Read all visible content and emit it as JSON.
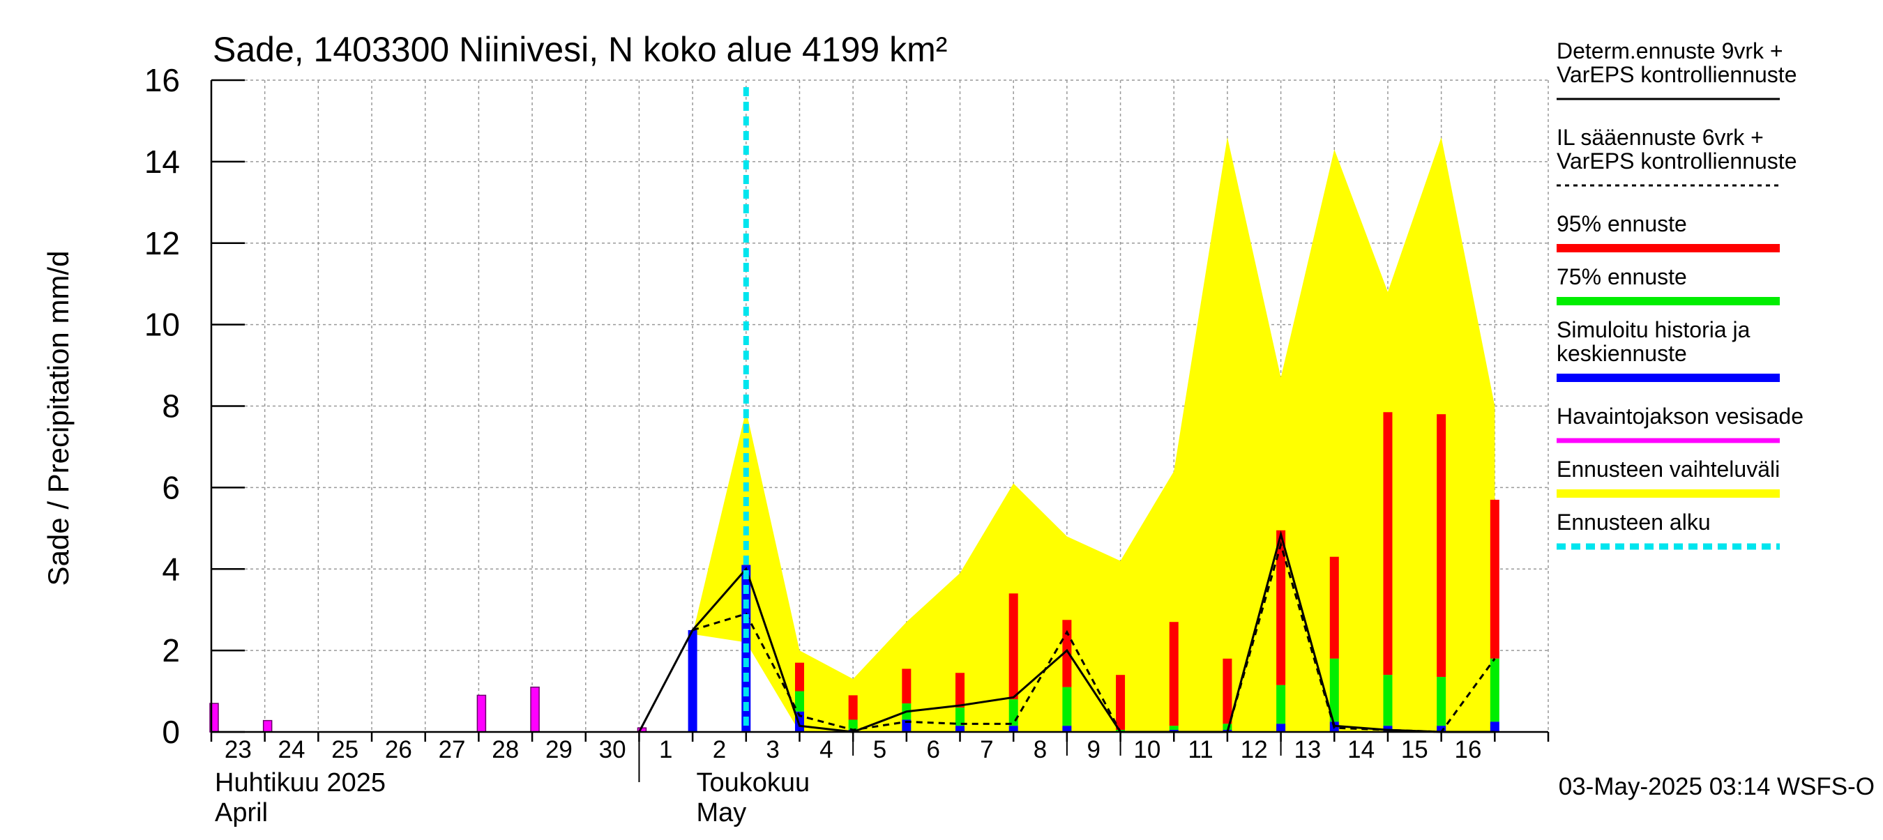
{
  "colors": {
    "background": "#ffffff",
    "grid": "#999999",
    "forecast_range": "#ffff00",
    "p95": "#ff0000",
    "p75": "#00ee00",
    "mean": "#0000ff",
    "observed": "#ff00ff",
    "forecast_start": "#00e5ee",
    "determ": "#000000"
  },
  "chart_data": {
    "type": "bar",
    "title": "Sade, 1403300 Niinivesi, N koko alue 4199 km²",
    "ylabel": "Sade / Precipitation   mm/d",
    "ylim": [
      0,
      16
    ],
    "yticks": [
      0,
      2,
      4,
      6,
      8,
      10,
      12,
      14,
      16
    ],
    "grid": true,
    "legend_position": "right",
    "x_day_labels": [
      "23",
      "24",
      "25",
      "26",
      "27",
      "28",
      "29",
      "30",
      "1",
      "2",
      "3",
      "4",
      "5",
      "6",
      "7",
      "8",
      "9",
      "10",
      "11",
      "12",
      "13",
      "14",
      "15",
      "16"
    ],
    "month_labels": [
      {
        "fi": "Huhtikuu  2025",
        "en": "April",
        "start_day_index": 0
      },
      {
        "fi": "Toukokuu",
        "en": "May",
        "start_day_index": 8
      }
    ],
    "forecast_start_day_index": 10,
    "observed_precipitation": [
      {
        "day_index": 0,
        "value": 0.7
      },
      {
        "day_index": 1,
        "value": 0.28
      },
      {
        "day_index": 5,
        "value": 0.9
      },
      {
        "day_index": 6,
        "value": 1.1
      },
      {
        "day_index": 8,
        "value": 0.1
      }
    ],
    "simulated_history": [
      {
        "day_index": 9,
        "value": 2.5
      },
      {
        "day_index": 10,
        "value": 4.1
      }
    ],
    "forecast_bars": [
      {
        "day_index": 11,
        "mean": 0.5,
        "p75": 1.0,
        "p95": 1.7
      },
      {
        "day_index": 12,
        "mean": 0.05,
        "p75": 0.3,
        "p95": 0.9
      },
      {
        "day_index": 13,
        "mean": 0.3,
        "p75": 0.7,
        "p95": 1.55
      },
      {
        "day_index": 14,
        "mean": 0.15,
        "p75": 0.6,
        "p95": 1.45
      },
      {
        "day_index": 15,
        "mean": 0.15,
        "p75": 0.8,
        "p95": 3.4
      },
      {
        "day_index": 16,
        "mean": 0.15,
        "p75": 1.1,
        "p95": 2.75
      },
      {
        "day_index": 17,
        "mean": 0.0,
        "p75": 0.05,
        "p95": 1.4
      },
      {
        "day_index": 18,
        "mean": 0.05,
        "p75": 0.15,
        "p95": 2.7
      },
      {
        "day_index": 19,
        "mean": 0.05,
        "p75": 0.2,
        "p95": 1.8
      },
      {
        "day_index": 20,
        "mean": 0.2,
        "p75": 1.15,
        "p95": 4.95
      },
      {
        "day_index": 21,
        "mean": 0.25,
        "p75": 1.8,
        "p95": 4.3
      },
      {
        "day_index": 22,
        "mean": 0.15,
        "p75": 1.4,
        "p95": 7.85
      },
      {
        "day_index": 23,
        "mean": 0.15,
        "p75": 1.35,
        "p95": 7.8
      },
      {
        "day_index": 24,
        "mean": 0.25,
        "p75": 1.8,
        "p95": 5.7
      }
    ],
    "forecast_range_upper": [
      {
        "x": 9,
        "y": 2.4
      },
      {
        "x": 10,
        "y": 7.9
      },
      {
        "x": 11,
        "y": 2.0
      },
      {
        "x": 12,
        "y": 1.3
      },
      {
        "x": 13,
        "y": 2.7
      },
      {
        "x": 14,
        "y": 3.9
      },
      {
        "x": 15,
        "y": 6.1
      },
      {
        "x": 16,
        "y": 4.8
      },
      {
        "x": 17,
        "y": 4.2
      },
      {
        "x": 18,
        "y": 6.4
      },
      {
        "x": 19,
        "y": 14.6
      },
      {
        "x": 20,
        "y": 8.7
      },
      {
        "x": 21,
        "y": 14.3
      },
      {
        "x": 22,
        "y": 10.8
      },
      {
        "x": 23,
        "y": 14.6
      },
      {
        "x": 24,
        "y": 8.0
      }
    ],
    "forecast_range_lower": [
      {
        "x": 9,
        "y": 2.4
      },
      {
        "x": 10,
        "y": 2.2
      },
      {
        "x": 11,
        "y": 0.0
      },
      {
        "x": 24,
        "y": 0.0
      }
    ],
    "determ_forecast_line": [
      {
        "x": 8,
        "y": 0.0
      },
      {
        "x": 9,
        "y": 2.5
      },
      {
        "x": 10,
        "y": 4.0
      },
      {
        "x": 11,
        "y": 0.15
      },
      {
        "x": 12,
        "y": 0.0
      },
      {
        "x": 13,
        "y": 0.5
      },
      {
        "x": 14,
        "y": 0.65
      },
      {
        "x": 15,
        "y": 0.85
      },
      {
        "x": 16,
        "y": 2.0
      },
      {
        "x": 17,
        "y": 0.0
      },
      {
        "x": 18,
        "y": 0.0
      },
      {
        "x": 19,
        "y": 0.0
      },
      {
        "x": 20,
        "y": 4.85
      },
      {
        "x": 21,
        "y": 0.15
      },
      {
        "x": 22,
        "y": 0.05
      },
      {
        "x": 23,
        "y": 0.0
      },
      {
        "x": 24,
        "y": 0.0
      }
    ],
    "il_forecast_line": [
      {
        "x": 9,
        "y": 2.5
      },
      {
        "x": 10,
        "y": 2.9
      },
      {
        "x": 11,
        "y": 0.4
      },
      {
        "x": 12,
        "y": 0.05
      },
      {
        "x": 13,
        "y": 0.25
      },
      {
        "x": 14,
        "y": 0.2
      },
      {
        "x": 15,
        "y": 0.2
      },
      {
        "x": 16,
        "y": 2.45
      },
      {
        "x": 17,
        "y": 0.0
      },
      {
        "x": 18,
        "y": 0.0
      },
      {
        "x": 19,
        "y": 0.0
      },
      {
        "x": 20,
        "y": 4.6
      },
      {
        "x": 21,
        "y": 0.1
      },
      {
        "x": 22,
        "y": 0.05
      },
      {
        "x": 23,
        "y": 0.0
      },
      {
        "x": 24,
        "y": 1.8
      }
    ],
    "legend": [
      {
        "key": "determ",
        "label_lines": [
          "Determ.ennuste 9vrk +",
          "VarEPS kontrolliennuste"
        ],
        "style": "solid-thin",
        "color": "#000000"
      },
      {
        "key": "il",
        "label_lines": [
          "IL sääennuste 6vrk  +",
          "  VarEPS kontrolliennuste"
        ],
        "style": "dashed-thin",
        "color": "#000000"
      },
      {
        "key": "p95",
        "label_lines": [
          "95% ennuste"
        ],
        "style": "thick",
        "color": "#ff0000"
      },
      {
        "key": "p75",
        "label_lines": [
          "75% ennuste"
        ],
        "style": "thick",
        "color": "#00ee00"
      },
      {
        "key": "mean",
        "label_lines": [
          "Simuloitu historia ja",
          "keskiennuste"
        ],
        "style": "thick",
        "color": "#0000ff"
      },
      {
        "key": "observed",
        "label_lines": [
          "Havaintojakson vesisade"
        ],
        "style": "medium",
        "color": "#ff00ff"
      },
      {
        "key": "range",
        "label_lines": [
          "Ennusteen vaihteluväli"
        ],
        "style": "thick",
        "color": "#ffff00"
      },
      {
        "key": "start",
        "label_lines": [
          "Ennusteen alku"
        ],
        "style": "dashed-thick",
        "color": "#00e5ee"
      }
    ],
    "footer": "03-May-2025 03:14 WSFS-O"
  }
}
